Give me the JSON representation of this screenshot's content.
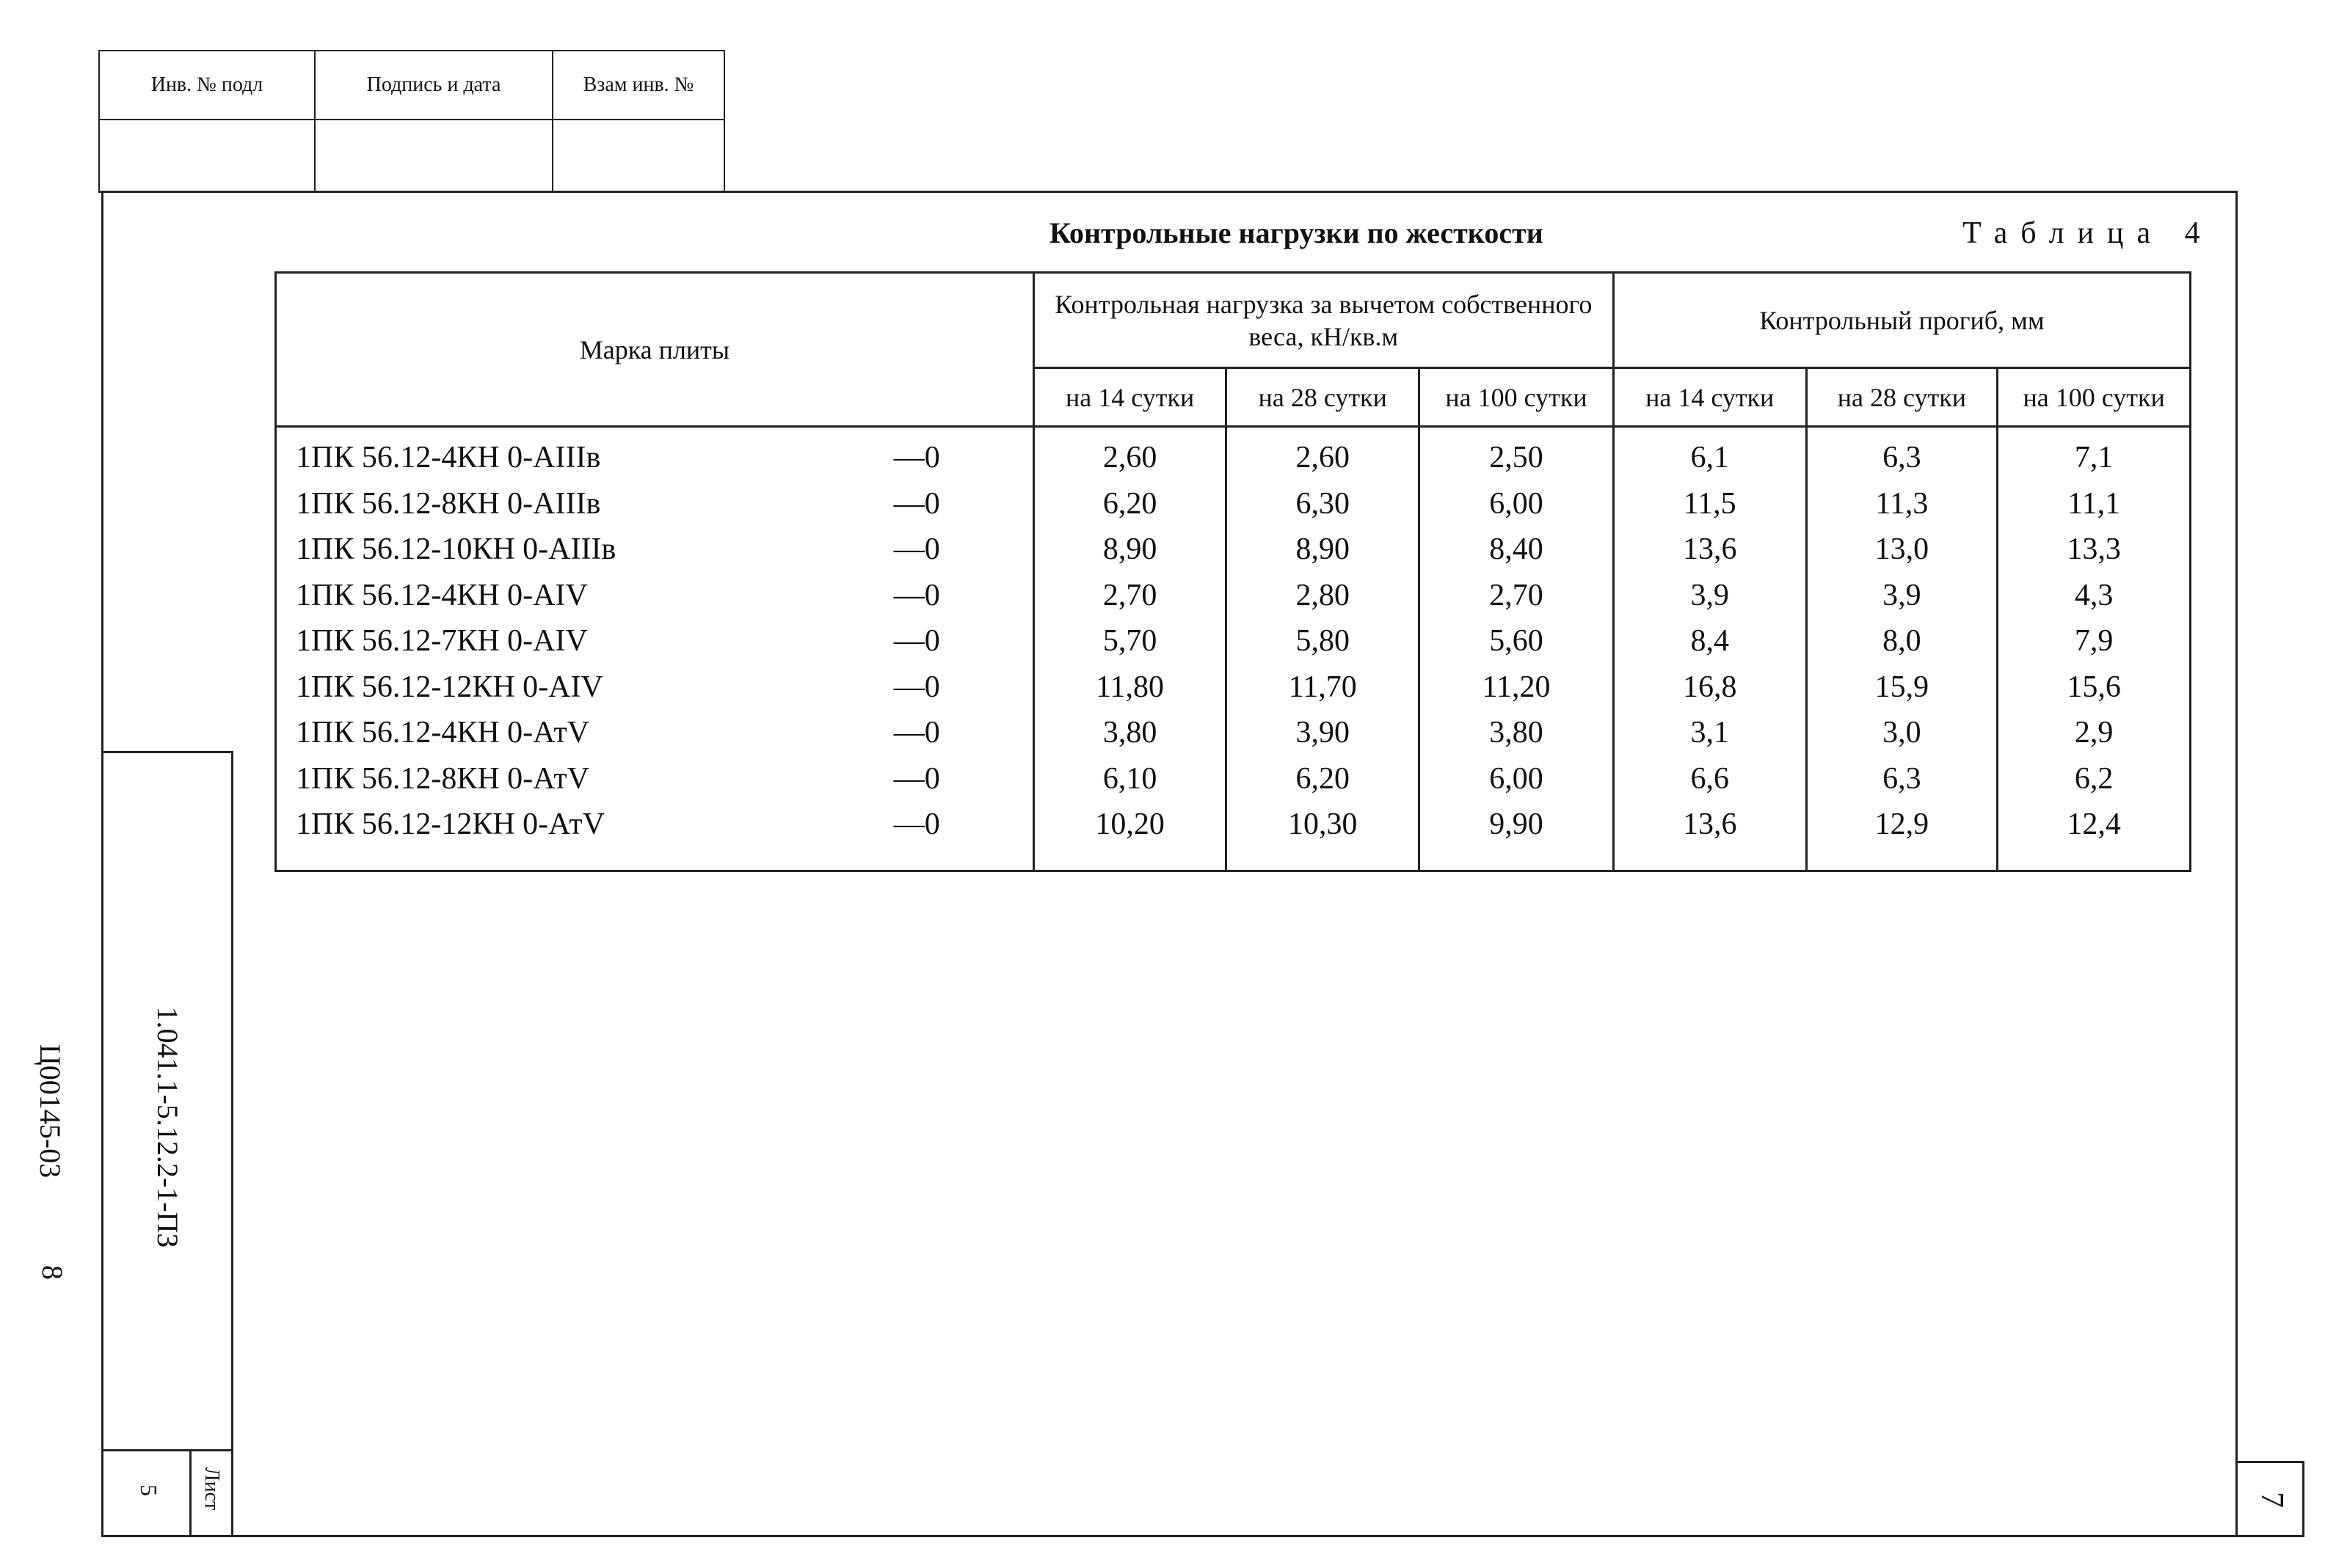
{
  "stamp_top": {
    "inv_podl_label": "Инв. № подл",
    "signature_date_label": "Подпись и дата",
    "vzam_inv_label": "Взам инв. №"
  },
  "heading": {
    "title": "Контрольные нагрузки по жесткости",
    "table_number": "Таблица 4"
  },
  "table": {
    "col_brand": "Марка плиты",
    "group_load": "Контрольная нагрузка за вычетом собственного веса, кН/кв.м",
    "group_deflection": "Контрольный прогиб, мм",
    "sub_cols": [
      "на 14 сутки",
      "на 28 сутки",
      "на 100 сутки",
      "на 14 сутки",
      "на 28 сутки",
      "на 100 сутки"
    ],
    "rows": [
      {
        "brand": "1ПК 56.12-4КН 0-АIIIв",
        "suffix": "—0",
        "v": [
          "2,60",
          "2,60",
          "2,50",
          "6,1",
          "6,3",
          "7,1"
        ]
      },
      {
        "brand": "1ПК 56.12-8КН 0-АIIIв",
        "suffix": "—0",
        "v": [
          "6,20",
          "6,30",
          "6,00",
          "11,5",
          "11,3",
          "11,1"
        ]
      },
      {
        "brand": "1ПК 56.12-10КН 0-АIIIв",
        "suffix": "—0",
        "v": [
          "8,90",
          "8,90",
          "8,40",
          "13,6",
          "13,0",
          "13,3"
        ]
      },
      {
        "brand": "1ПК 56.12-4КН 0-АIV",
        "suffix": "—0",
        "v": [
          "2,70",
          "2,80",
          "2,70",
          "3,9",
          "3,9",
          "4,3"
        ]
      },
      {
        "brand": "1ПК 56.12-7КН 0-АIV",
        "suffix": "—0",
        "v": [
          "5,70",
          "5,80",
          "5,60",
          "8,4",
          "8,0",
          "7,9"
        ]
      },
      {
        "brand": "1ПК 56.12-12КН 0-АIV",
        "suffix": "—0",
        "v": [
          "11,80",
          "11,70",
          "11,20",
          "16,8",
          "15,9",
          "15,6"
        ]
      },
      {
        "brand": "1ПК 56.12-4КН 0-АтV",
        "suffix": "—0",
        "v": [
          "3,80",
          "3,90",
          "3,80",
          "3,1",
          "3,0",
          "2,9"
        ]
      },
      {
        "brand": "1ПК 56.12-8КН 0-АтV",
        "suffix": "—0",
        "v": [
          "6,10",
          "6,20",
          "6,00",
          "6,6",
          "6,3",
          "6,2"
        ]
      },
      {
        "brand": "1ПК 56.12-12КН 0-АтV",
        "suffix": "—0",
        "v": [
          "10,20",
          "10,30",
          "9,90",
          "13,6",
          "12,9",
          "12,4"
        ]
      }
    ]
  },
  "side_stamp": {
    "doc_code": "1.041.1-5.12.2-1-ПЗ",
    "sheet_label": "Лист",
    "sheet_number": "5"
  },
  "margin": {
    "archive_code": "Ц00145-03",
    "archive_page": "8"
  },
  "corner_page_number": "7"
}
